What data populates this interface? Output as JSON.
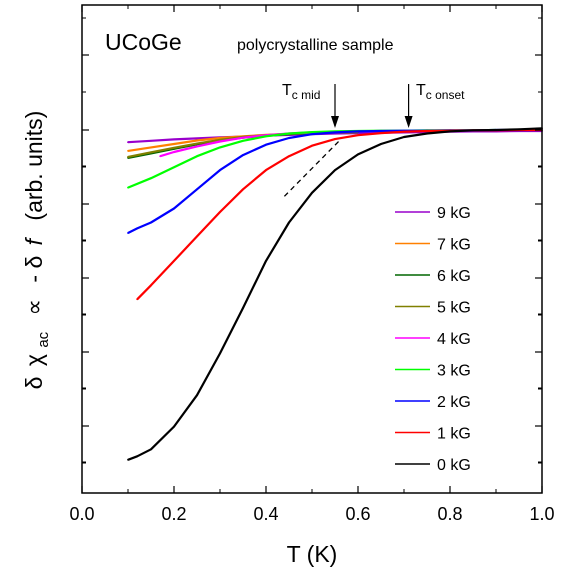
{
  "chart_data": {
    "type": "line",
    "title": "",
    "annotations": {
      "material": "UCoGe",
      "sample": "polycrystalline sample",
      "tc_mid_main": "T",
      "tc_mid_sub": "c mid",
      "tc_onset_main": "T",
      "tc_onset_sub": "c onset",
      "tc_mid_x": 0.55,
      "tc_onset_x": 0.71
    },
    "xlabel": "T (K)",
    "ylabel_parts": {
      "delta1": "δ",
      "chi": "χ",
      "chi_sub": "ac",
      "prop": "∝",
      "minus": "- δ",
      "f": "f",
      "units": "(arb. units)"
    },
    "xlim": [
      0.0,
      1.0
    ],
    "ylim": [
      0,
      100
    ],
    "xticks": [
      "0.0",
      "0.2",
      "0.4",
      "0.6",
      "0.8",
      "1.0"
    ],
    "xtick_values": [
      0.0,
      0.2,
      0.4,
      0.6,
      0.8,
      1.0
    ],
    "y_tick_labels_shown": false,
    "grid": false,
    "legend_position": "right",
    "series": [
      {
        "name": "9 kG",
        "color": "#9900cc",
        "x": [
          0.1,
          0.15,
          0.2,
          0.25,
          0.3,
          0.35,
          0.4,
          0.45,
          0.5,
          0.55,
          0.6,
          0.65,
          0.7,
          0.75,
          0.8,
          0.85,
          0.9,
          0.95,
          1.0
        ],
        "y": [
          96.5,
          96.9,
          97.3,
          97.6,
          97.9,
          98.1,
          98.4,
          98.6,
          98.8,
          99.0,
          99.1,
          99.2,
          99.3,
          99.4,
          99.5,
          99.6,
          99.6,
          99.7,
          99.7
        ]
      },
      {
        "name": "7 kG",
        "color": "#ff8000",
        "x": [
          0.1,
          0.15,
          0.2,
          0.25,
          0.3,
          0.35,
          0.4,
          0.45,
          0.5,
          0.55,
          0.6
        ],
        "y": [
          94.0,
          95.0,
          96.0,
          97.0,
          97.7,
          98.2,
          98.6,
          98.9,
          99.1,
          99.3,
          99.4
        ]
      },
      {
        "name": "6 kG",
        "color": "#006600",
        "x": [
          0.1,
          0.15,
          0.2,
          0.25,
          0.3,
          0.35,
          0.4,
          0.45,
          0.5,
          0.55,
          0.6
        ],
        "y": [
          92.0,
          93.3,
          94.6,
          95.9,
          97.0,
          97.8,
          98.4,
          98.8,
          99.1,
          99.3,
          99.4
        ]
      },
      {
        "name": "5 kG",
        "color": "#808000",
        "x": [
          0.1,
          0.15,
          0.2,
          0.25,
          0.3,
          0.35,
          0.4,
          0.45,
          0.5,
          0.55,
          0.6
        ],
        "y": [
          92.3,
          93.6,
          94.9,
          96.1,
          97.2,
          98.0,
          98.5,
          98.9,
          99.2,
          99.3,
          99.4
        ]
      },
      {
        "name": "4 kG",
        "color": "#ff00ff",
        "x": [
          0.17,
          0.2,
          0.25,
          0.3,
          0.35,
          0.4,
          0.45,
          0.5,
          0.55,
          0.6,
          0.65,
          0.7
        ],
        "y": [
          92.5,
          93.7,
          95.3,
          96.7,
          97.8,
          98.5,
          99.0,
          99.3,
          99.5,
          99.6,
          99.7,
          99.7
        ]
      },
      {
        "name": "3 kG",
        "color": "#00ff00",
        "x": [
          0.1,
          0.15,
          0.2,
          0.25,
          0.3,
          0.35,
          0.4,
          0.45,
          0.5,
          0.55,
          0.6,
          0.65,
          0.7,
          0.75,
          0.8,
          0.85,
          0.9
        ],
        "y": [
          83.5,
          86.2,
          89.3,
          92.5,
          95.0,
          96.9,
          98.2,
          99.0,
          99.4,
          99.6,
          99.7,
          99.8,
          99.8,
          99.9,
          99.9,
          99.9,
          100.0
        ]
      },
      {
        "name": "2 kG",
        "color": "#0000ff",
        "x": [
          0.1,
          0.12,
          0.15,
          0.2,
          0.25,
          0.3,
          0.35,
          0.4,
          0.45,
          0.5,
          0.55,
          0.6,
          0.65,
          0.7,
          0.75,
          0.8,
          0.85,
          0.9,
          0.95,
          1.0
        ],
        "y": [
          70.5,
          71.8,
          73.5,
          77.5,
          83.0,
          88.5,
          92.8,
          95.8,
          97.7,
          98.8,
          99.3,
          99.6,
          99.7,
          99.8,
          99.8,
          99.9,
          99.9,
          100.0,
          100.0,
          100.0
        ]
      },
      {
        "name": "1 kG",
        "color": "#ff0000",
        "x": [
          0.12,
          0.15,
          0.2,
          0.25,
          0.3,
          0.35,
          0.4,
          0.45,
          0.5,
          0.55,
          0.6,
          0.65,
          0.7,
          0.75,
          0.8,
          0.85,
          0.9,
          0.95,
          1.0
        ],
        "y": [
          51.5,
          55.5,
          62.5,
          69.5,
          76.5,
          83.0,
          88.5,
          92.5,
          95.5,
          97.4,
          98.5,
          99.1,
          99.5,
          99.7,
          99.8,
          99.9,
          99.9,
          100.0,
          100.0
        ]
      },
      {
        "name": "0 kG",
        "color": "#000000",
        "x": [
          0.1,
          0.12,
          0.15,
          0.2,
          0.25,
          0.3,
          0.35,
          0.4,
          0.45,
          0.5,
          0.55,
          0.6,
          0.65,
          0.7,
          0.75,
          0.8,
          0.85,
          0.9,
          0.95,
          1.0
        ],
        "y": [
          5.5,
          6.5,
          8.5,
          15.0,
          24.0,
          36.0,
          49.0,
          62.5,
          73.5,
          82.0,
          88.5,
          93.0,
          96.0,
          98.0,
          99.0,
          99.6,
          99.9,
          100.0,
          100.2,
          100.5
        ]
      }
    ],
    "dashed_extrapolation": {
      "x": [
        0.44,
        0.56
      ],
      "y": [
        81.0,
        97.0
      ]
    }
  }
}
